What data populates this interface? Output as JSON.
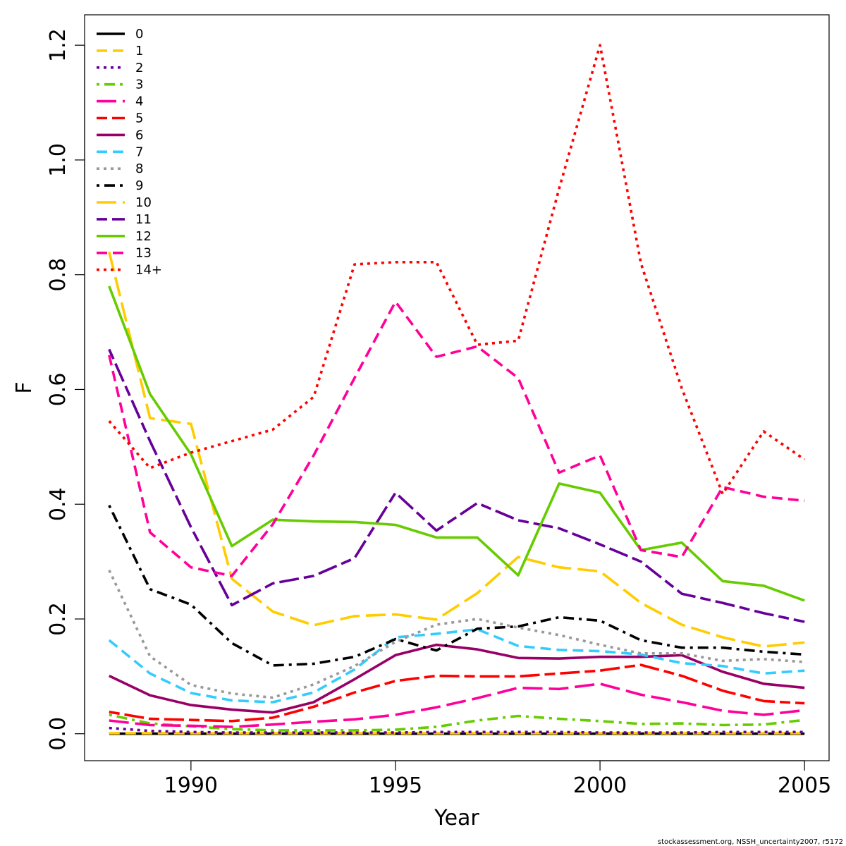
{
  "chart_data": {
    "type": "line",
    "title": "",
    "xlabel": "Year",
    "ylabel": "F",
    "xlim": [
      1987.4,
      2005.6
    ],
    "ylim": [
      -0.047,
      1.253
    ],
    "xticks": [
      1990,
      1995,
      2000,
      2005
    ],
    "xtick_labels": [
      "1990",
      "1995",
      "2000",
      "2005"
    ],
    "yticks": [
      0.0,
      0.2,
      0.4,
      0.6,
      0.8,
      1.0,
      1.2
    ],
    "ytick_labels": [
      "0.0",
      "0.2",
      "0.4",
      "0.6",
      "0.8",
      "1.0",
      "1.2"
    ],
    "grid": false,
    "legend_position": "top-left",
    "footnote": "stockassessment.org, NSSH_uncertainty2007, r5172",
    "x": [
      1988,
      1989,
      1990,
      1991,
      1992,
      1993,
      1994,
      1995,
      1996,
      1997,
      1998,
      1999,
      2000,
      2001,
      2002,
      2003,
      2004,
      2005
    ],
    "series": [
      {
        "name": "0",
        "color": "#000000",
        "dash": "solid",
        "values": [
          0.0,
          0.0,
          0.0,
          0.0,
          0.0,
          0.0,
          0.0,
          0.0,
          0.0,
          0.0,
          0.0,
          0.0,
          0.0,
          0.0,
          0.0,
          0.0,
          0.0,
          0.0
        ]
      },
      {
        "name": "1",
        "color": "#FFCC00",
        "dash": "dashed",
        "values": [
          0.001,
          0.001,
          0.001,
          0.001,
          0.001,
          0.001,
          0.001,
          0.001,
          0.001,
          0.001,
          0.001,
          0.001,
          0.001,
          0.001,
          0.001,
          0.001,
          0.001,
          0.001
        ]
      },
      {
        "name": "2",
        "color": "#660099",
        "dash": "dotted",
        "values": [
          0.01,
          0.005,
          0.003,
          0.002,
          0.002,
          0.002,
          0.002,
          0.002,
          0.003,
          0.003,
          0.003,
          0.003,
          0.002,
          0.002,
          0.002,
          0.003,
          0.003,
          0.003
        ]
      },
      {
        "name": "3",
        "color": "#66CC00",
        "dash": "dotdash",
        "values": [
          0.033,
          0.018,
          0.013,
          0.008,
          0.006,
          0.006,
          0.006,
          0.007,
          0.012,
          0.023,
          0.031,
          0.026,
          0.022,
          0.017,
          0.018,
          0.015,
          0.016,
          0.024
        ]
      },
      {
        "name": "4",
        "color": "#FF0099",
        "dash": "longdash",
        "values": [
          0.023,
          0.015,
          0.014,
          0.012,
          0.016,
          0.021,
          0.025,
          0.033,
          0.046,
          0.062,
          0.08,
          0.078,
          0.087,
          0.068,
          0.055,
          0.04,
          0.033,
          0.041
        ]
      },
      {
        "name": "5",
        "color": "#FF0000",
        "dash": "twodash",
        "values": [
          0.038,
          0.026,
          0.024,
          0.022,
          0.028,
          0.047,
          0.072,
          0.092,
          0.101,
          0.1,
          0.1,
          0.105,
          0.11,
          0.12,
          0.101,
          0.075,
          0.057,
          0.053
        ]
      },
      {
        "name": "6",
        "color": "#990066",
        "dash": "solid",
        "values": [
          0.101,
          0.067,
          0.05,
          0.042,
          0.037,
          0.055,
          0.095,
          0.137,
          0.155,
          0.147,
          0.132,
          0.131,
          0.134,
          0.134,
          0.137,
          0.108,
          0.087,
          0.08
        ]
      },
      {
        "name": "7",
        "color": "#33CCFF",
        "dash": "dashed",
        "values": [
          0.163,
          0.105,
          0.071,
          0.058,
          0.055,
          0.072,
          0.112,
          0.168,
          0.174,
          0.182,
          0.153,
          0.146,
          0.144,
          0.138,
          0.123,
          0.118,
          0.105,
          0.11
        ]
      },
      {
        "name": "8",
        "color": "#999999",
        "dash": "dotted",
        "values": [
          0.285,
          0.135,
          0.085,
          0.07,
          0.063,
          0.086,
          0.118,
          0.16,
          0.19,
          0.2,
          0.185,
          0.172,
          0.155,
          0.14,
          0.14,
          0.127,
          0.13,
          0.125
        ]
      },
      {
        "name": "9",
        "color": "#000000",
        "dash": "dotdash",
        "values": [
          0.398,
          0.252,
          0.225,
          0.158,
          0.119,
          0.122,
          0.134,
          0.165,
          0.145,
          0.183,
          0.187,
          0.203,
          0.197,
          0.163,
          0.15,
          0.15,
          0.143,
          0.138
        ]
      },
      {
        "name": "10",
        "color": "#FFCC00",
        "dash": "longdash",
        "values": [
          0.84,
          0.55,
          0.54,
          0.27,
          0.213,
          0.189,
          0.205,
          0.208,
          0.199,
          0.245,
          0.308,
          0.29,
          0.283,
          0.228,
          0.19,
          0.168,
          0.152,
          0.159
        ]
      },
      {
        "name": "11",
        "color": "#660099",
        "dash": "twodash",
        "values": [
          0.67,
          0.51,
          0.36,
          0.224,
          0.262,
          0.275,
          0.306,
          0.42,
          0.354,
          0.402,
          0.372,
          0.358,
          0.33,
          0.3,
          0.244,
          0.228,
          0.21,
          0.195
        ]
      },
      {
        "name": "12",
        "color": "#66CC00",
        "dash": "solid",
        "values": [
          0.78,
          0.592,
          0.487,
          0.327,
          0.373,
          0.37,
          0.369,
          0.364,
          0.342,
          0.342,
          0.276,
          0.436,
          0.42,
          0.32,
          0.333,
          0.266,
          0.258,
          0.232
        ]
      },
      {
        "name": "13",
        "color": "#FF0099",
        "dash": "dashed",
        "values": [
          0.66,
          0.351,
          0.29,
          0.275,
          0.365,
          0.485,
          0.62,
          0.753,
          0.657,
          0.675,
          0.62,
          0.455,
          0.485,
          0.32,
          0.308,
          0.43,
          0.413,
          0.406
        ]
      },
      {
        "name": "14+",
        "color": "#FF0000",
        "dash": "dotted",
        "values": [
          0.545,
          0.463,
          0.49,
          0.51,
          0.53,
          0.587,
          0.818,
          0.822,
          0.822,
          0.678,
          0.685,
          0.95,
          1.2,
          0.82,
          0.602,
          0.418,
          0.527,
          0.478
        ]
      }
    ]
  }
}
